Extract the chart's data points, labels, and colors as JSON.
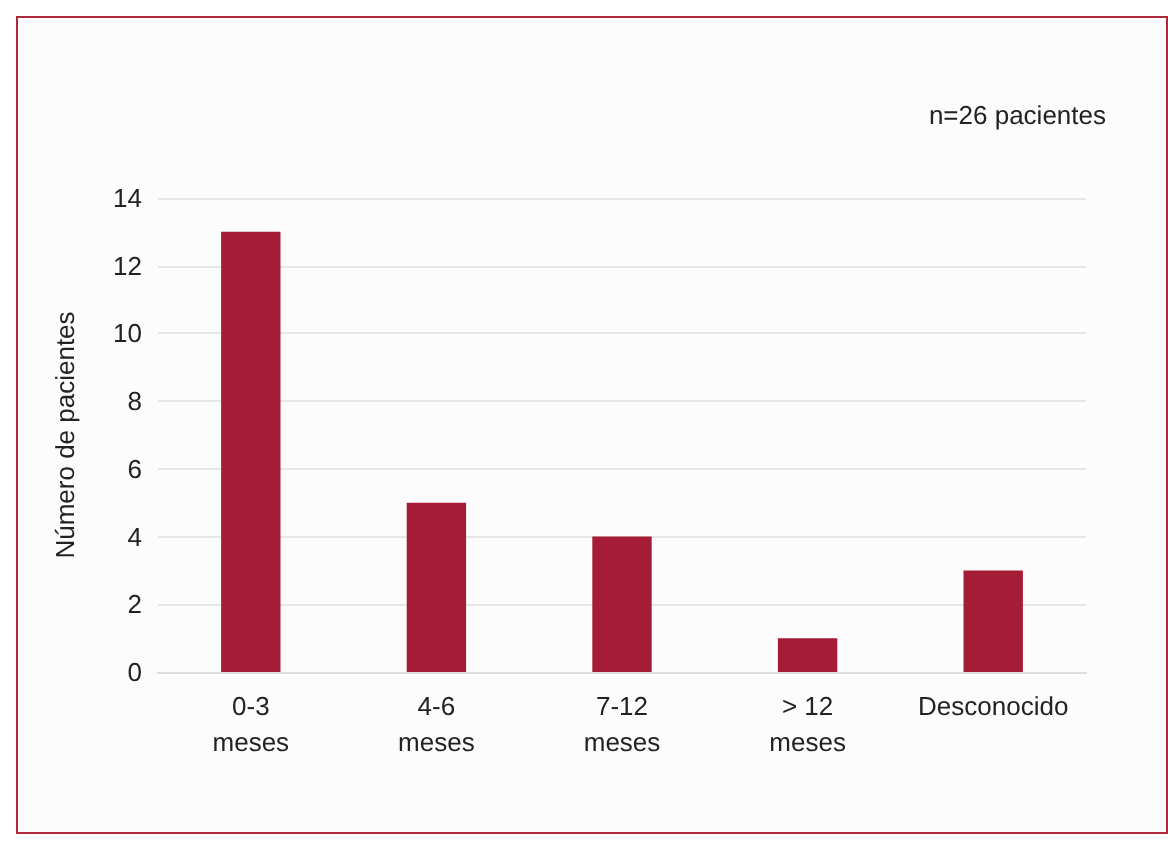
{
  "chart_data": {
    "type": "bar",
    "ylabel": "Número de pacientes",
    "annotations": [
      "n=26 pacientes"
    ],
    "categories": [
      "0-3\nmeses",
      "4-6\nmeses",
      "7-12\nmeses",
      "> 12\nmeses",
      "Desconocido"
    ],
    "values": [
      13,
      5,
      4,
      1,
      3
    ],
    "color": "#a51c36",
    "ylim": [
      0,
      14
    ],
    "yticks": [
      0,
      2,
      4,
      6,
      8,
      10,
      12,
      14
    ],
    "grid": "y"
  }
}
